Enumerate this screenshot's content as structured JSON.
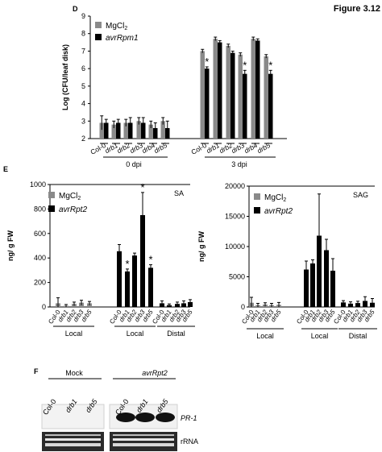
{
  "figure_label": "Figure 3.12",
  "panels": {
    "D": {
      "letter": "D"
    },
    "E": {
      "letter": "E"
    },
    "F": {
      "letter": "F"
    }
  },
  "colors": {
    "mgcl2": "#8a8a8a",
    "avr": "#000000",
    "bg": "#ffffff"
  },
  "chart_data": [
    {
      "id": "D",
      "type": "bar",
      "ylabel": "Log (CFU/leaf disk)",
      "ylim": [
        2,
        9
      ],
      "yticks": [
        2,
        3,
        4,
        5,
        6,
        7,
        8,
        9
      ],
      "legend": {
        "items": [
          "MgCl",
          "avrRpm1"
        ],
        "sub": "2",
        "placement": "top-left"
      },
      "categories": [
        "Col-0",
        "drb1",
        "drb2",
        "drb3",
        "drb4",
        "drb5",
        "Col-0",
        "drb1",
        "drb2",
        "drb3",
        "drb4",
        "drb5"
      ],
      "group_labels": [
        "0 dpi",
        "3 dpi"
      ],
      "series": [
        {
          "name": "MgCl2",
          "values": [
            2.9,
            2.8,
            2.9,
            3.0,
            2.8,
            3.0,
            7.0,
            7.7,
            7.3,
            6.8,
            7.7,
            6.7
          ],
          "errors": [
            0.4,
            0.2,
            0.2,
            0.2,
            0.2,
            0.2,
            0.1,
            0.1,
            0.1,
            0.1,
            0.1,
            0.1
          ]
        },
        {
          "name": "avrRpm1",
          "values": [
            2.9,
            2.9,
            2.9,
            2.9,
            2.6,
            2.6,
            6.0,
            7.5,
            6.9,
            5.7,
            7.6,
            5.7
          ],
          "errors": [
            0.2,
            0.2,
            0.3,
            0.3,
            0.3,
            0.4,
            0.1,
            0.1,
            0.1,
            0.2,
            0.1,
            0.2
          ]
        }
      ],
      "significance": [
        "",
        "",
        "",
        "",
        "",
        "",
        "*",
        "",
        "",
        "*",
        "",
        "*"
      ]
    },
    {
      "id": "E-SA",
      "type": "bar",
      "title": "SA",
      "ylabel": "ng/ g FW",
      "ylim": [
        0,
        1000
      ],
      "yticks": [
        0,
        200,
        400,
        600,
        800,
        1000
      ],
      "legend": {
        "items": [
          "MgCl",
          "avrRpt2"
        ],
        "sub": "2",
        "placement": "top-left"
      },
      "categories": [
        "Col-0",
        "drb1",
        "drb2",
        "drb3",
        "drb5"
      ],
      "group_labels": [
        "Local",
        "Local",
        "Distal"
      ],
      "series": [
        {
          "name": "MgCl2",
          "values": [
            30,
            10,
            25,
            35,
            30
          ],
          "errors": [
            45,
            10,
            15,
            20,
            15
          ]
        },
        {
          "name": "avrRpt2 Local",
          "values": [
            455,
            290,
            420,
            750,
            320
          ],
          "errors": [
            55,
            20,
            20,
            185,
            25
          ]
        },
        {
          "name": "avrRpt2 Distal",
          "values": [
            30,
            15,
            25,
            30,
            40
          ],
          "errors": [
            20,
            10,
            15,
            20,
            20
          ]
        }
      ],
      "significance": [
        "",
        "*",
        "",
        "*",
        "*"
      ]
    },
    {
      "id": "E-SAG",
      "type": "bar",
      "title": "SAG",
      "ylabel": "ng/ g FW",
      "ylim": [
        0,
        20000
      ],
      "yticks": [
        0,
        5000,
        10000,
        15000,
        20000
      ],
      "legend": {
        "items": [
          "MgCl",
          "avrRpt2"
        ],
        "sub": "2",
        "placement": "top-left"
      },
      "categories": [
        "Col-0",
        "drb1",
        "drb2",
        "drb3",
        "drb5"
      ],
      "group_labels": [
        "Local",
        "Local",
        "Distal"
      ],
      "series": [
        {
          "name": "MgCl2",
          "values": [
            700,
            300,
            400,
            300,
            350
          ],
          "errors": [
            900,
            300,
            300,
            300,
            400
          ]
        },
        {
          "name": "avrRpt2 Local",
          "values": [
            6200,
            7200,
            11800,
            9400,
            6000
          ],
          "errors": [
            1400,
            600,
            6900,
            1800,
            2000
          ]
        },
        {
          "name": "avrRpt2 Distal",
          "values": [
            750,
            550,
            650,
            1000,
            700
          ],
          "errors": [
            300,
            300,
            300,
            700,
            700
          ]
        }
      ]
    }
  ],
  "blot": {
    "headers": [
      "Mock",
      "avrRpt2"
    ],
    "lanes": [
      "Col-0",
      "drb1",
      "drb5",
      "Col-0",
      "drb1",
      "drb5"
    ],
    "rows": [
      "PR-1",
      "rRNA"
    ]
  }
}
